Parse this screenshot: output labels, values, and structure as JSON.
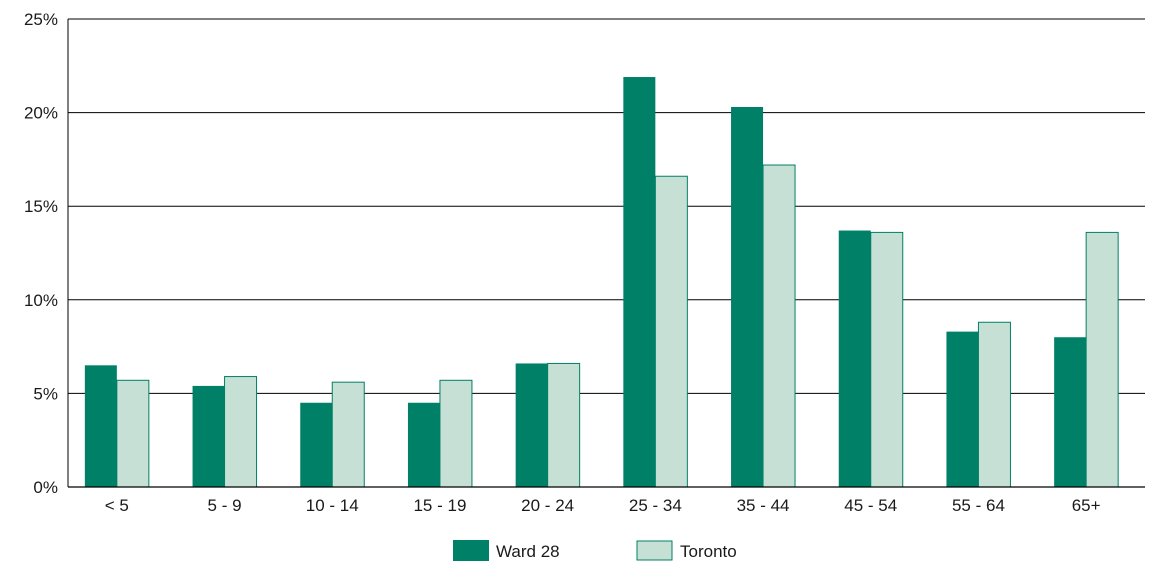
{
  "chart_data": {
    "type": "bar",
    "categories": [
      "< 5",
      "5 - 9",
      "10 - 14",
      "15 - 19",
      "20 - 24",
      "25 - 34",
      "35 - 44",
      "45 - 54",
      "55 - 64",
      "65+"
    ],
    "series": [
      {
        "name": "Ward 28",
        "values": [
          6.5,
          5.4,
          4.5,
          4.5,
          6.6,
          21.9,
          20.3,
          13.7,
          8.3,
          8.0
        ],
        "color": "#008066"
      },
      {
        "name": "Toronto",
        "values": [
          5.7,
          5.9,
          5.6,
          5.7,
          6.6,
          16.6,
          17.2,
          13.6,
          8.8,
          13.6
        ],
        "color": "#c7e0d6",
        "stroke": "#008066"
      }
    ],
    "ylim": [
      0,
      25
    ],
    "yticks": [
      0,
      5,
      10,
      15,
      20,
      25
    ],
    "ytick_labels": [
      "0%",
      "5%",
      "10%",
      "15%",
      "20%",
      "25%"
    ],
    "grid": true,
    "legend_position": "bottom-center",
    "title": "",
    "xlabel": "",
    "ylabel": ""
  }
}
